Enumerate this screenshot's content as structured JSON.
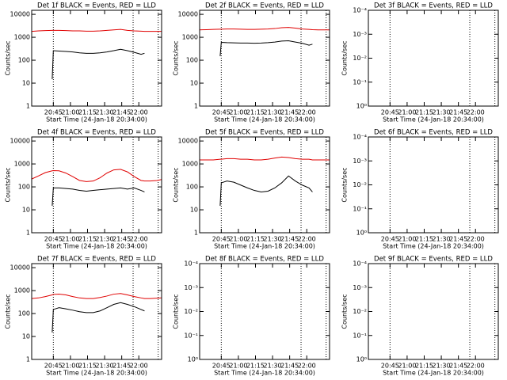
{
  "chart_data": [
    {
      "type": "line",
      "title": "Det 1f BLACK = Events, RED = LLD",
      "ylabel": "Counts/sec",
      "xlabel": "Start Time (24-Jan-18 20:34:00)",
      "x": [
        "20:26",
        "20:32",
        "20:38",
        "20:44",
        "20:45",
        "20:50",
        "20:56",
        "21:02",
        "21:08",
        "21:14",
        "21:20",
        "21:26",
        "21:32",
        "21:38",
        "21:44",
        "21:50",
        "21:56",
        "22:02",
        "22:05",
        "22:10",
        "22:16",
        "22:20"
      ],
      "xlim": [
        "20:26",
        "22:20"
      ],
      "xticks": [
        "20:45",
        "21:00",
        "21:15",
        "21:30",
        "21:45",
        "22:00"
      ],
      "log_scale": true,
      "ylim": [
        1,
        15000
      ],
      "yticks": [
        1,
        10,
        100,
        1000,
        10000
      ],
      "vlines": [
        "20:45",
        "21:55",
        "22:17"
      ],
      "series": [
        {
          "name": "RED",
          "color": "#e00000",
          "values": [
            1800,
            1900,
            1950,
            2000,
            2000,
            2000,
            1950,
            1900,
            1900,
            1850,
            1850,
            1900,
            2000,
            2100,
            2200,
            2000,
            1900,
            1850,
            1800,
            1800,
            1800,
            1800
          ]
        },
        {
          "name": "BLACK",
          "color": "#000000",
          "values": [
            null,
            null,
            null,
            15,
            260,
            250,
            240,
            230,
            210,
            200,
            200,
            210,
            230,
            260,
            300,
            260,
            220,
            180,
            200,
            null,
            null,
            null
          ]
        }
      ]
    },
    {
      "type": "line",
      "title": "Det 2f BLACK = Events, RED = LLD",
      "ylabel": "Counts/sec",
      "xlabel": "Start Time (24-Jan-18 20:34:00)",
      "x": [
        "20:26",
        "20:32",
        "20:38",
        "20:44",
        "20:45",
        "20:50",
        "20:56",
        "21:02",
        "21:08",
        "21:14",
        "21:20",
        "21:26",
        "21:32",
        "21:38",
        "21:44",
        "21:50",
        "21:56",
        "22:02",
        "22:05",
        "22:10",
        "22:16",
        "22:20"
      ],
      "xlim": [
        "20:26",
        "22:20"
      ],
      "xticks": [
        "20:45",
        "21:00",
        "21:15",
        "21:30",
        "21:45",
        "22:00"
      ],
      "log_scale": true,
      "ylim": [
        1,
        15000
      ],
      "yticks": [
        1,
        10,
        100,
        1000,
        10000
      ],
      "vlines": [
        "20:45",
        "21:55",
        "22:17"
      ],
      "series": [
        {
          "name": "RED",
          "color": "#e00000",
          "values": [
            2100,
            2150,
            2200,
            2250,
            2250,
            2300,
            2300,
            2250,
            2200,
            2200,
            2250,
            2300,
            2400,
            2600,
            2700,
            2500,
            2300,
            2200,
            2150,
            2100,
            2100,
            2100
          ]
        },
        {
          "name": "BLACK",
          "color": "#000000",
          "values": [
            null,
            null,
            null,
            150,
            600,
            580,
            570,
            560,
            560,
            550,
            560,
            580,
            620,
            680,
            700,
            620,
            550,
            450,
            500,
            null,
            null,
            null
          ]
        }
      ]
    },
    {
      "type": "line",
      "title": "Det 3f BLACK = Events, RED = LLD",
      "ylabel": "Counts/sec",
      "xlabel": "Start Time (24-Jan-18 20:34:00)",
      "xlim": [
        "20:26",
        "22:20"
      ],
      "xticks": [
        "20:45",
        "21:00",
        "21:15",
        "21:30",
        "21:45",
        "22:00"
      ],
      "log_scale": true,
      "ylim": [
        1,
        0.0001
      ],
      "yticks": [
        {
          "value": 1,
          "label": "10⁰"
        },
        {
          "value": 0.1,
          "label": "10⁻¹"
        },
        {
          "value": 0.01,
          "label": "10⁻²"
        },
        {
          "value": 0.001,
          "label": "10⁻³"
        },
        {
          "value": 0.0001,
          "label": "10⁻⁴"
        }
      ],
      "vlines": [
        "20:45",
        "21:55",
        "22:17"
      ],
      "series": []
    },
    {
      "type": "line",
      "title": "Det 4f BLACK = Events, RED = LLD",
      "ylabel": "Counts/sec",
      "xlabel": "Start Time (24-Jan-18 20:34:00)",
      "x": [
        "20:26",
        "20:32",
        "20:38",
        "20:44",
        "20:45",
        "20:50",
        "20:56",
        "21:02",
        "21:08",
        "21:14",
        "21:20",
        "21:26",
        "21:32",
        "21:38",
        "21:44",
        "21:50",
        "21:56",
        "22:02",
        "22:05",
        "22:10",
        "22:16",
        "22:20"
      ],
      "xlim": [
        "20:26",
        "22:20"
      ],
      "xticks": [
        "20:45",
        "21:00",
        "21:15",
        "21:30",
        "21:45",
        "22:00"
      ],
      "log_scale": true,
      "ylim": [
        1,
        15000
      ],
      "yticks": [
        1,
        10,
        100,
        1000,
        10000
      ],
      "vlines": [
        "20:45",
        "21:55",
        "22:17"
      ],
      "series": [
        {
          "name": "RED",
          "color": "#e00000",
          "values": [
            220,
            300,
            420,
            500,
            510,
            500,
            400,
            280,
            190,
            170,
            180,
            250,
            400,
            550,
            580,
            450,
            280,
            190,
            180,
            180,
            190,
            210
          ]
        },
        {
          "name": "BLACK",
          "color": "#000000",
          "values": [
            null,
            null,
            null,
            15,
            90,
            90,
            85,
            80,
            70,
            65,
            70,
            75,
            80,
            85,
            90,
            80,
            90,
            70,
            60,
            null,
            null,
            null
          ]
        }
      ]
    },
    {
      "type": "line",
      "title": "Det 5f BLACK = Events, RED = LLD",
      "ylabel": "Counts/sec",
      "xlabel": "Start Time (24-Jan-18 20:34:00)",
      "x": [
        "20:26",
        "20:32",
        "20:38",
        "20:44",
        "20:45",
        "20:50",
        "20:56",
        "21:02",
        "21:08",
        "21:14",
        "21:20",
        "21:26",
        "21:32",
        "21:38",
        "21:44",
        "21:50",
        "21:56",
        "22:02",
        "22:05",
        "22:10",
        "22:16",
        "22:20"
      ],
      "xlim": [
        "20:26",
        "22:20"
      ],
      "xticks": [
        "20:45",
        "21:00",
        "21:15",
        "21:30",
        "21:45",
        "22:00"
      ],
      "log_scale": true,
      "ylim": [
        1,
        15000
      ],
      "yticks": [
        1,
        10,
        100,
        1000,
        10000
      ],
      "vlines": [
        "20:45",
        "21:55",
        "22:17"
      ],
      "series": [
        {
          "name": "RED",
          "color": "#e00000",
          "values": [
            1500,
            1500,
            1500,
            1600,
            1600,
            1700,
            1700,
            1600,
            1600,
            1500,
            1500,
            1600,
            1800,
            2000,
            1900,
            1700,
            1600,
            1600,
            1500,
            1500,
            1500,
            1500
          ]
        },
        {
          "name": "BLACK",
          "color": "#000000",
          "values": [
            null,
            null,
            null,
            15,
            150,
            180,
            160,
            120,
            90,
            70,
            60,
            65,
            90,
            150,
            300,
            180,
            120,
            90,
            60,
            null,
            null,
            null
          ]
        }
      ]
    },
    {
      "type": "line",
      "title": "Det 6f BLACK = Events, RED = LLD",
      "ylabel": "Counts/sec",
      "xlabel": "Start Time (24-Jan-18 20:34:00)",
      "xlim": [
        "20:26",
        "22:20"
      ],
      "xticks": [
        "20:45",
        "21:00",
        "21:15",
        "21:30",
        "21:45",
        "22:00"
      ],
      "log_scale": true,
      "ylim": [
        1,
        0.0001
      ],
      "yticks": [
        {
          "value": 1,
          "label": "10⁰"
        },
        {
          "value": 0.1,
          "label": "10⁻¹"
        },
        {
          "value": 0.01,
          "label": "10⁻²"
        },
        {
          "value": 0.001,
          "label": "10⁻³"
        },
        {
          "value": 0.0001,
          "label": "10⁻⁴"
        }
      ],
      "vlines": [
        "20:45",
        "21:55",
        "22:17"
      ],
      "series": []
    },
    {
      "type": "line",
      "title": "Det 7f BLACK = Events, RED = LLD",
      "ylabel": "Counts/sec",
      "xlabel": "Start Time (24-Jan-18 20:34:00)",
      "x": [
        "20:26",
        "20:32",
        "20:38",
        "20:44",
        "20:45",
        "20:50",
        "20:56",
        "21:02",
        "21:08",
        "21:14",
        "21:20",
        "21:26",
        "21:32",
        "21:38",
        "21:44",
        "21:50",
        "21:56",
        "22:02",
        "22:05",
        "22:10",
        "22:16",
        "22:20"
      ],
      "xlim": [
        "20:26",
        "22:20"
      ],
      "xticks": [
        "20:45",
        "21:00",
        "21:15",
        "21:30",
        "21:45",
        "22:00"
      ],
      "log_scale": true,
      "ylim": [
        1,
        15000
      ],
      "yticks": [
        1,
        10,
        100,
        1000,
        10000
      ],
      "vlines": [
        "20:45",
        "21:55",
        "22:17"
      ],
      "series": [
        {
          "name": "RED",
          "color": "#e00000",
          "values": [
            450,
            480,
            550,
            650,
            680,
            700,
            650,
            550,
            480,
            450,
            450,
            500,
            580,
            700,
            750,
            650,
            550,
            480,
            450,
            450,
            470,
            480
          ]
        },
        {
          "name": "BLACK",
          "color": "#000000",
          "values": [
            null,
            null,
            null,
            15,
            150,
            180,
            160,
            140,
            120,
            110,
            110,
            130,
            180,
            250,
            300,
            250,
            200,
            150,
            130,
            null,
            null,
            null
          ]
        }
      ]
    },
    {
      "type": "line",
      "title": "Det 8f BLACK = Events, RED = LLD",
      "ylabel": "Counts/sec",
      "xlabel": "Start Time (24-Jan-18 20:34:00)",
      "xlim": [
        "20:26",
        "22:20"
      ],
      "xticks": [
        "20:45",
        "21:00",
        "21:15",
        "21:30",
        "21:45",
        "22:00"
      ],
      "log_scale": true,
      "ylim": [
        1,
        0.0001
      ],
      "yticks": [
        {
          "value": 1,
          "label": "10⁰"
        },
        {
          "value": 0.1,
          "label": "10⁻¹"
        },
        {
          "value": 0.01,
          "label": "10⁻²"
        },
        {
          "value": 0.001,
          "label": "10⁻³"
        },
        {
          "value": 0.0001,
          "label": "10⁻⁴"
        }
      ],
      "vlines": [
        "20:45",
        "21:55",
        "22:17"
      ],
      "series": []
    },
    {
      "type": "line",
      "title": "Det 9f BLACK = Events, RED = LLD",
      "ylabel": "Counts/sec",
      "xlabel": "Start Time (24-Jan-18 20:34:00)",
      "xlim": [
        "20:26",
        "22:20"
      ],
      "xticks": [
        "20:45",
        "21:00",
        "21:15",
        "21:30",
        "21:45",
        "22:00"
      ],
      "log_scale": true,
      "ylim": [
        1,
        0.0001
      ],
      "yticks": [
        {
          "value": 1,
          "label": "10⁰"
        },
        {
          "value": 0.1,
          "label": "10⁻¹"
        },
        {
          "value": 0.01,
          "label": "10⁻²"
        },
        {
          "value": 0.001,
          "label": "10⁻³"
        },
        {
          "value": 0.0001,
          "label": "10⁻⁴"
        }
      ],
      "vlines": [
        "20:45",
        "21:55",
        "22:17"
      ],
      "series": []
    }
  ]
}
